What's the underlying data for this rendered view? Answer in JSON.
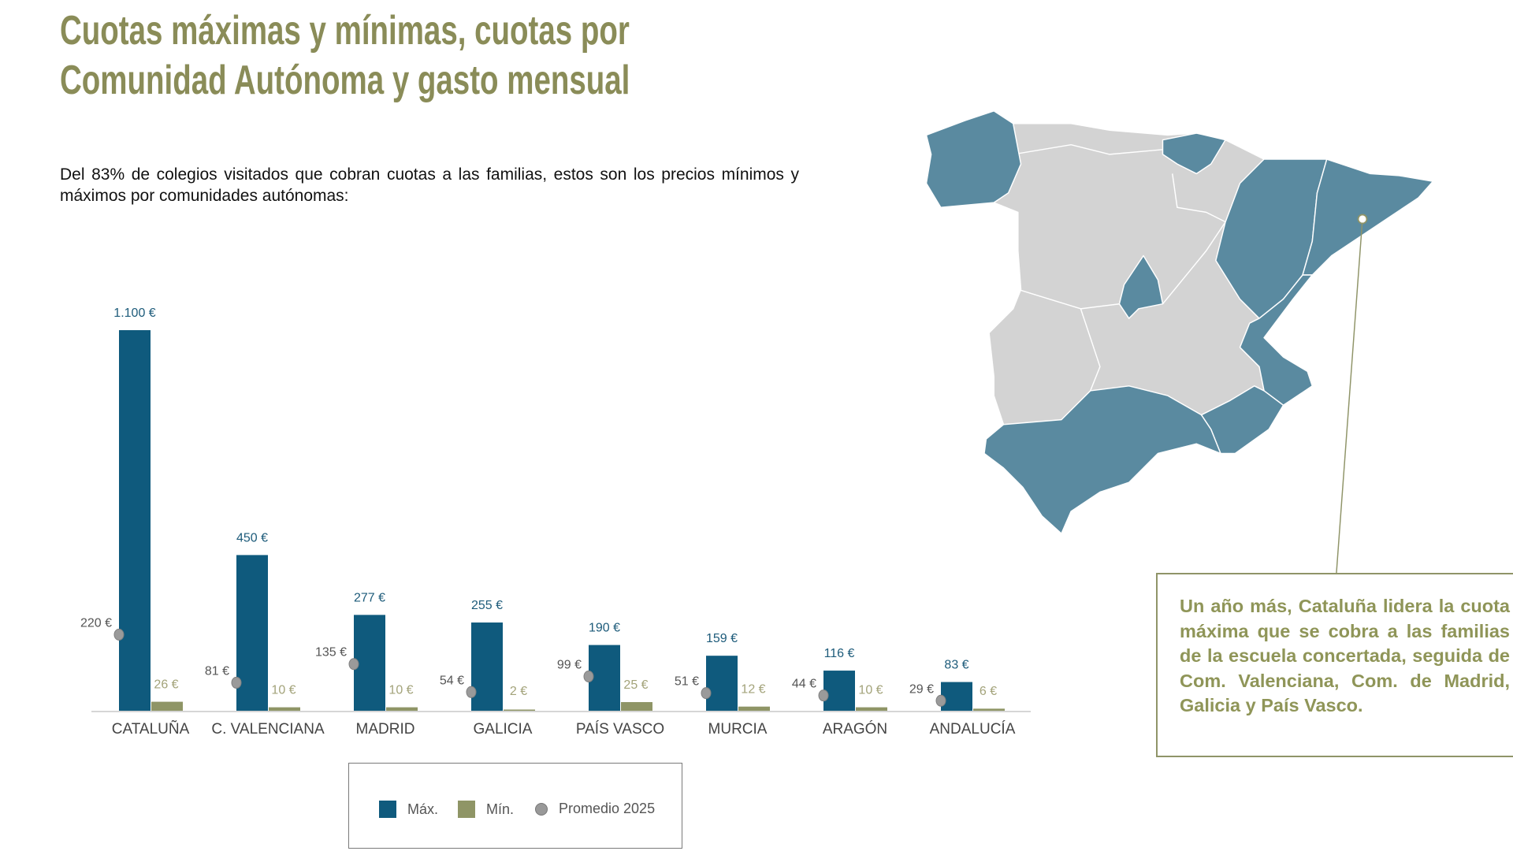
{
  "title": {
    "line1": "Cuotas máximas y mínimas, cuotas por",
    "line2": "Comunidad Autónoma y gasto mensual"
  },
  "subtitle": "Del 83% de colegios visitados que cobran cuotas a las familias, estos son los precios mínimos y máximos por comunidades autónomas:",
  "chart_data": {
    "type": "bar",
    "categories": [
      "CATALUÑA",
      "C. VALENCIANA",
      "MADRID",
      "GALICIA",
      "PAÍS VASCO",
      "MURCIA",
      "ARAGÓN",
      "ANDALUCÍA"
    ],
    "series": [
      {
        "name": "Máx.",
        "color": "#0f5a7d",
        "values": [
          1100,
          450,
          277,
          255,
          190,
          159,
          116,
          83
        ],
        "labels": [
          "1.100 €",
          "450 €",
          "277 €",
          "255 €",
          "190 €",
          "159 €",
          "116 €",
          "83 €"
        ]
      },
      {
        "name": "Mín.",
        "color": "#8f9566",
        "values": [
          26,
          10,
          10,
          2,
          25,
          12,
          10,
          6
        ],
        "labels": [
          "26 €",
          "10 €",
          "10 €",
          "2 €",
          "25 €",
          "12 €",
          "10 €",
          "6 €"
        ]
      },
      {
        "name": "Promedio 2025",
        "type": "point",
        "color": "#999999",
        "values": [
          220,
          81,
          135,
          54,
          99,
          51,
          44,
          29
        ],
        "labels": [
          "220 €",
          "81 €",
          "135 €",
          "54 €",
          "99 €",
          "51 €",
          "44 €",
          "29 €"
        ]
      }
    ],
    "ylim": [
      0,
      1100
    ],
    "grid": false,
    "legend": "bottom"
  },
  "map": {
    "highlight_color": "#5a8aa0",
    "base_color": "#d3d3d3",
    "highlighted_regions": [
      "Galicia",
      "País Vasco",
      "Aragón",
      "Cataluña",
      "C. Valenciana",
      "Murcia",
      "Andalucía",
      "Madrid"
    ]
  },
  "callout": "Un año más, Cataluña lidera la cuota máxima que se cobra a las familias de la escuela concertada, seguida de Com. Valenciana, Com. de Madrid, Galicia y País Vasco."
}
